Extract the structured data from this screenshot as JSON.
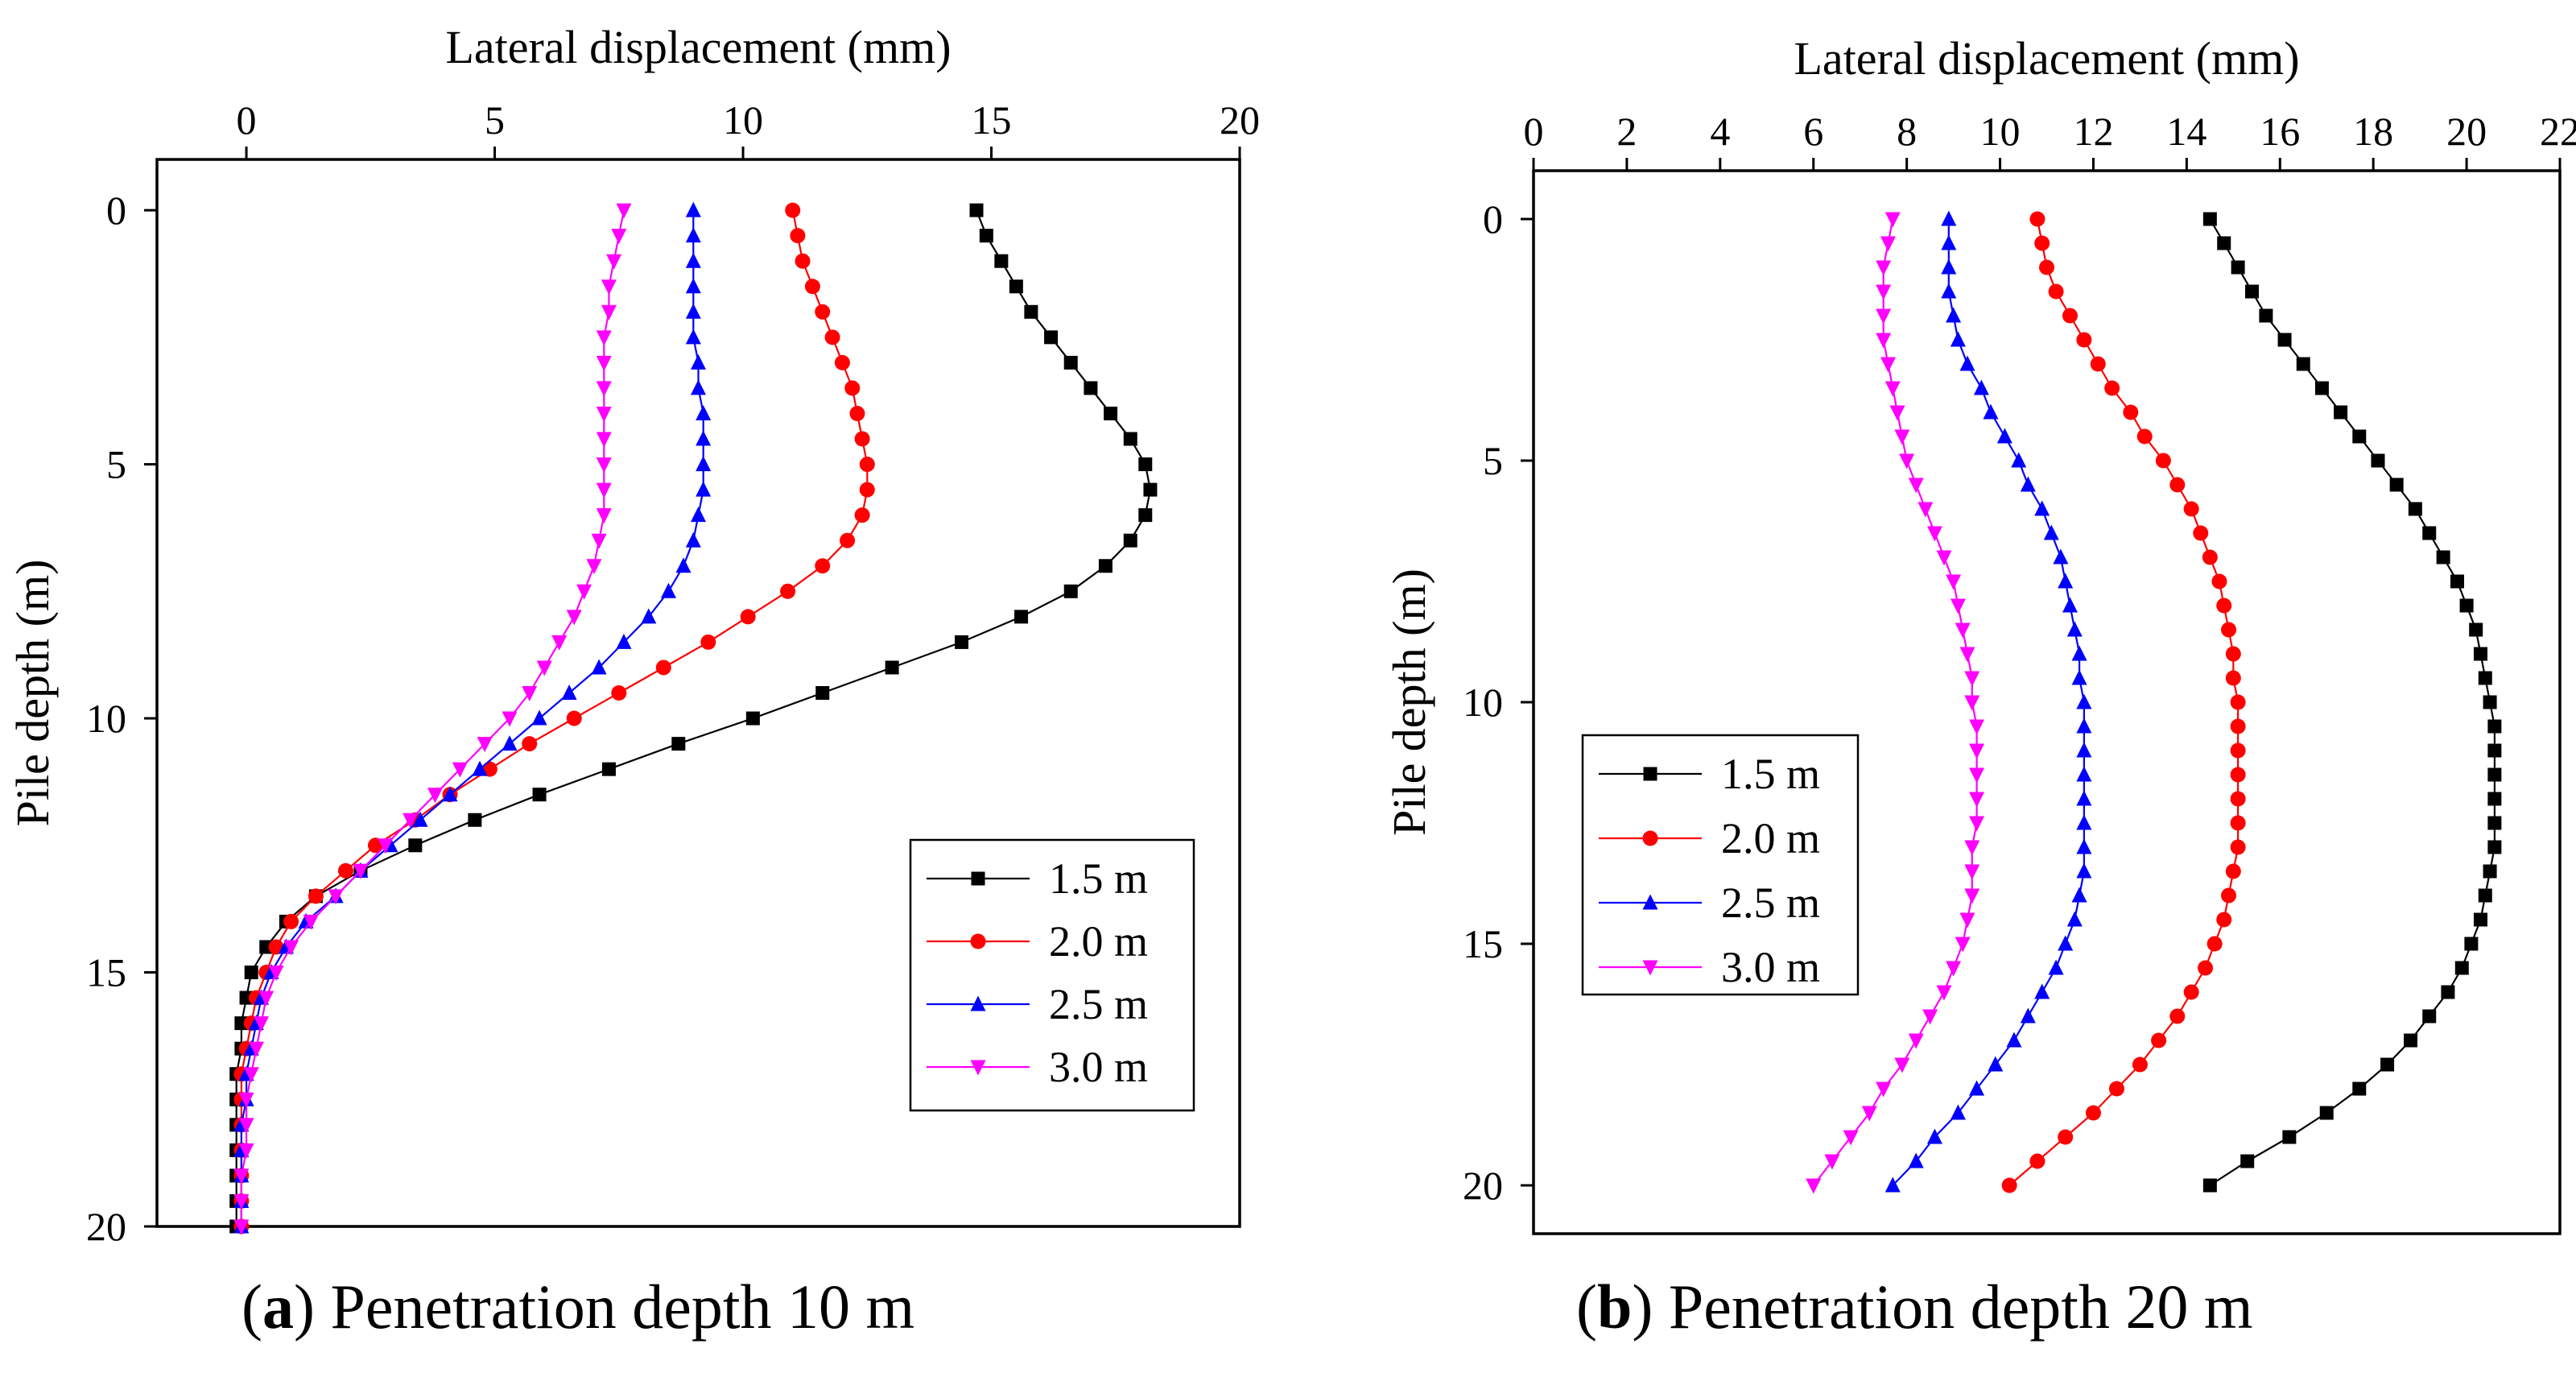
{
  "chart_data": [
    {
      "type": "line",
      "panel": "a",
      "xlabel": "Lateral displacement (mm)",
      "ylabel": "Pile depth (m)",
      "xlim": [
        -1.8,
        20
      ],
      "ylim": [
        20,
        -1
      ],
      "xticks": [
        0,
        5,
        10,
        15,
        20
      ],
      "yticks": [
        0,
        5,
        10,
        15,
        20
      ],
      "x_axis_position": "top",
      "y_reversed": true,
      "grid": false,
      "legend_position": "lower-right",
      "caption_label": "a",
      "caption_text": "Penetration depth 10 m",
      "depth": [
        0,
        0.5,
        1,
        1.5,
        2,
        2.5,
        3,
        3.5,
        4,
        4.5,
        5,
        5.5,
        6,
        6.5,
        7,
        7.5,
        8,
        8.5,
        9,
        9.5,
        10,
        10.5,
        11,
        11.5,
        12,
        12.5,
        13,
        13.5,
        14,
        14.5,
        15,
        15.5,
        16,
        16.5,
        17,
        17.5,
        18,
        18.5,
        19,
        19.5,
        20
      ],
      "series": [
        {
          "name": "1.5 m",
          "color": "#000000",
          "marker": "square",
          "values": [
            14.7,
            14.9,
            15.2,
            15.5,
            15.8,
            16.2,
            16.6,
            17.0,
            17.4,
            17.8,
            18.1,
            18.2,
            18.1,
            17.8,
            17.3,
            16.6,
            15.6,
            14.4,
            13.0,
            11.6,
            10.2,
            8.7,
            7.3,
            5.9,
            4.6,
            3.4,
            2.3,
            1.4,
            0.8,
            0.4,
            0.1,
            0.0,
            -0.1,
            -0.1,
            -0.2,
            -0.2,
            -0.2,
            -0.2,
            -0.2,
            -0.2,
            -0.2
          ]
        },
        {
          "name": "2.0 m",
          "color": "#ff0000",
          "marker": "circle",
          "values": [
            11.0,
            11.1,
            11.2,
            11.4,
            11.6,
            11.8,
            12.0,
            12.2,
            12.3,
            12.4,
            12.5,
            12.5,
            12.4,
            12.1,
            11.6,
            10.9,
            10.1,
            9.3,
            8.4,
            7.5,
            6.6,
            5.7,
            4.9,
            4.1,
            3.4,
            2.6,
            2.0,
            1.4,
            0.9,
            0.6,
            0.4,
            0.2,
            0.1,
            0.0,
            -0.1,
            -0.1,
            -0.1,
            -0.1,
            -0.1,
            -0.1,
            -0.1
          ]
        },
        {
          "name": "2.5 m",
          "color": "#0000ff",
          "marker": "triangle-up",
          "values": [
            9.0,
            9.0,
            9.0,
            9.0,
            9.0,
            9.0,
            9.1,
            9.1,
            9.2,
            9.2,
            9.2,
            9.2,
            9.1,
            9.0,
            8.8,
            8.5,
            8.1,
            7.6,
            7.1,
            6.5,
            5.9,
            5.3,
            4.7,
            4.1,
            3.5,
            2.9,
            2.3,
            1.8,
            1.2,
            0.8,
            0.5,
            0.3,
            0.2,
            0.1,
            0.0,
            0.0,
            -0.1,
            -0.1,
            -0.1,
            -0.1,
            -0.1
          ]
        },
        {
          "name": "3.0 m",
          "color": "#ff00ff",
          "marker": "triangle-down",
          "values": [
            7.6,
            7.5,
            7.4,
            7.3,
            7.3,
            7.2,
            7.2,
            7.2,
            7.2,
            7.2,
            7.2,
            7.2,
            7.2,
            7.1,
            7.0,
            6.8,
            6.6,
            6.3,
            6.0,
            5.7,
            5.3,
            4.8,
            4.3,
            3.8,
            3.3,
            2.8,
            2.3,
            1.8,
            1.3,
            0.9,
            0.6,
            0.4,
            0.3,
            0.2,
            0.1,
            0.0,
            0.0,
            0.0,
            -0.1,
            -0.1,
            -0.1
          ]
        }
      ]
    },
    {
      "type": "line",
      "panel": "b",
      "xlabel": "Lateral displacement (mm)",
      "ylabel": "Pile depth (m)",
      "xlim": [
        0,
        22
      ],
      "ylim": [
        21,
        -1
      ],
      "xticks": [
        0,
        2,
        4,
        6,
        8,
        10,
        12,
        14,
        16,
        18,
        20,
        22
      ],
      "yticks": [
        0,
        5,
        10,
        15,
        20
      ],
      "x_axis_position": "top",
      "y_reversed": true,
      "grid": false,
      "legend_position": "middle-left",
      "caption_label": "b",
      "caption_text": "Penetration depth 20 m",
      "depth": [
        0,
        0.5,
        1,
        1.5,
        2,
        2.5,
        3,
        3.5,
        4,
        4.5,
        5,
        5.5,
        6,
        6.5,
        7,
        7.5,
        8,
        8.5,
        9,
        9.5,
        10,
        10.5,
        11,
        11.5,
        12,
        12.5,
        13,
        13.5,
        14,
        14.5,
        15,
        15.5,
        16,
        16.5,
        17,
        17.5,
        18,
        18.5,
        19,
        19.5,
        20
      ],
      "series": [
        {
          "name": "1.5 m",
          "color": "#000000",
          "marker": "square",
          "values": [
            14.5,
            14.8,
            15.1,
            15.4,
            15.7,
            16.1,
            16.5,
            16.9,
            17.3,
            17.7,
            18.1,
            18.5,
            18.9,
            19.2,
            19.5,
            19.8,
            20.0,
            20.2,
            20.3,
            20.4,
            20.5,
            20.6,
            20.6,
            20.6,
            20.6,
            20.6,
            20.6,
            20.5,
            20.4,
            20.3,
            20.1,
            19.9,
            19.6,
            19.2,
            18.8,
            18.3,
            17.7,
            17.0,
            16.2,
            15.3,
            14.5
          ]
        },
        {
          "name": "2.0 m",
          "color": "#ff0000",
          "marker": "circle",
          "values": [
            10.8,
            10.9,
            11.0,
            11.2,
            11.5,
            11.8,
            12.1,
            12.4,
            12.8,
            13.1,
            13.5,
            13.8,
            14.1,
            14.3,
            14.5,
            14.7,
            14.8,
            14.9,
            15.0,
            15.0,
            15.1,
            15.1,
            15.1,
            15.1,
            15.1,
            15.1,
            15.1,
            15.0,
            14.9,
            14.8,
            14.6,
            14.4,
            14.1,
            13.8,
            13.4,
            13.0,
            12.5,
            12.0,
            11.4,
            10.8,
            10.2
          ]
        },
        {
          "name": "2.5 m",
          "color": "#0000ff",
          "marker": "triangle-up",
          "values": [
            8.9,
            8.9,
            8.9,
            8.9,
            9.0,
            9.1,
            9.3,
            9.6,
            9.8,
            10.1,
            10.4,
            10.6,
            10.9,
            11.1,
            11.3,
            11.4,
            11.5,
            11.6,
            11.7,
            11.7,
            11.8,
            11.8,
            11.8,
            11.8,
            11.8,
            11.8,
            11.8,
            11.8,
            11.7,
            11.6,
            11.4,
            11.2,
            10.9,
            10.6,
            10.3,
            9.9,
            9.5,
            9.1,
            8.6,
            8.2,
            7.7
          ]
        },
        {
          "name": "3.0 m",
          "color": "#ff00ff",
          "marker": "triangle-down",
          "values": [
            7.7,
            7.6,
            7.5,
            7.5,
            7.5,
            7.5,
            7.6,
            7.7,
            7.8,
            7.9,
            8.0,
            8.2,
            8.4,
            8.6,
            8.8,
            9.0,
            9.1,
            9.2,
            9.3,
            9.4,
            9.4,
            9.5,
            9.5,
            9.5,
            9.5,
            9.5,
            9.4,
            9.4,
            9.4,
            9.3,
            9.2,
            9.0,
            8.8,
            8.5,
            8.2,
            7.9,
            7.5,
            7.2,
            6.8,
            6.4,
            6.0
          ]
        }
      ]
    }
  ]
}
